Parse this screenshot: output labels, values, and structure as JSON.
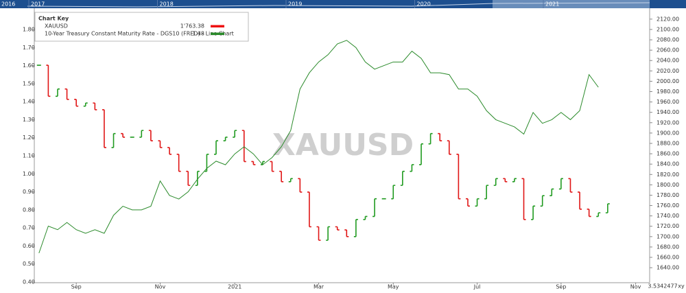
{
  "chart_data": {
    "type": "bar-line",
    "watermark": "XAUUSD",
    "legend_title": "Chart Key",
    "navigator": {
      "labels": [
        "2016",
        "2017",
        "2018",
        "2019",
        "2020",
        "2021"
      ]
    },
    "corner_labels": [
      "3.5342477",
      "xy"
    ],
    "categories": [
      null,
      null,
      null,
      null,
      "Sep",
      null,
      null,
      null,
      null,
      null,
      null,
      null,
      null,
      "Nov",
      null,
      null,
      null,
      null,
      null,
      null,
      null,
      "2021",
      null,
      null,
      null,
      null,
      null,
      null,
      null,
      null,
      "Mar",
      null,
      null,
      null,
      null,
      null,
      null,
      null,
      "May",
      null,
      null,
      null,
      null,
      null,
      null,
      null,
      null,
      "Jul",
      null,
      null,
      null,
      null,
      null,
      null,
      null,
      null,
      "Sep",
      null,
      null,
      null,
      null,
      null,
      null,
      null,
      "Nov",
      null
    ],
    "series": [
      {
        "name": "XAUUSD",
        "value_label": "1'763.38",
        "color": "#ee1111",
        "up_color": "#1f9a1f",
        "down_color": "#e01515",
        "values": [
          2031,
          1971,
          1985,
          1965,
          1952,
          1958,
          1945,
          1872,
          1899,
          1892,
          1892,
          1905,
          1885,
          1872,
          1859,
          1826,
          1799,
          1826,
          1859,
          1885,
          1892,
          1905,
          1845,
          1839,
          1845,
          1826,
          1806,
          1812,
          1786,
          1719,
          1693,
          1719,
          1713,
          1700,
          1733,
          1739,
          1773,
          1773,
          1799,
          1826,
          1839,
          1879,
          1899,
          1885,
          1859,
          1773,
          1759,
          1773,
          1799,
          1812,
          1806,
          1812,
          1733,
          1759,
          1779,
          1792,
          1812,
          1786,
          1753,
          1739,
          1746,
          1763.38,
          null,
          null,
          null,
          null
        ]
      },
      {
        "name": "10-Year Treasury Constant Maturity Rate - DGS10 (FRED) - Line Chart",
        "value_label": "1.48",
        "color": "#2a8a2a",
        "axis": "y2",
        "values": [
          0.56,
          0.71,
          0.69,
          0.73,
          0.69,
          0.67,
          0.69,
          0.67,
          0.77,
          0.82,
          0.8,
          0.8,
          0.82,
          0.96,
          0.88,
          0.86,
          0.9,
          0.97,
          1.03,
          1.07,
          1.05,
          1.11,
          1.15,
          1.11,
          1.05,
          1.09,
          1.15,
          1.24,
          1.47,
          1.56,
          1.62,
          1.66,
          1.72,
          1.74,
          1.7,
          1.62,
          1.58,
          1.6,
          1.62,
          1.62,
          1.68,
          1.64,
          1.56,
          1.56,
          1.55,
          1.47,
          1.47,
          1.43,
          1.35,
          1.3,
          1.28,
          1.26,
          1.22,
          1.34,
          1.28,
          1.3,
          1.34,
          1.3,
          1.35,
          1.55,
          1.48,
          null,
          null,
          null,
          null,
          null
        ]
      }
    ],
    "ylim": [
      1611,
      2141
    ],
    "yticks": [
      {
        "value": 1640,
        "label": "1640.00"
      },
      {
        "value": 1660,
        "label": "1660.00"
      },
      {
        "value": 1680,
        "label": "1680.00"
      },
      {
        "value": 1700,
        "label": "1700.00"
      },
      {
        "value": 1720,
        "label": "1720.00"
      },
      {
        "value": 1740,
        "label": "1740.00"
      },
      {
        "value": 1760,
        "label": "1760.00"
      },
      {
        "value": 1780,
        "label": "1780.00"
      },
      {
        "value": 1800,
        "label": "1800.00"
      },
      {
        "value": 1820,
        "label": "1820.00"
      },
      {
        "value": 1840,
        "label": "1840.00"
      },
      {
        "value": 1860,
        "label": "1860.00"
      },
      {
        "value": 1880,
        "label": "1880.00"
      },
      {
        "value": 1900,
        "label": "1900.00"
      },
      {
        "value": 1920,
        "label": "1920.00"
      },
      {
        "value": 1940,
        "label": "1940.00"
      },
      {
        "value": 1960,
        "label": "1960.00"
      },
      {
        "value": 1980,
        "label": "1980.00"
      },
      {
        "value": 2000,
        "label": "2000.00"
      },
      {
        "value": 2020,
        "label": "2020.00"
      },
      {
        "value": 2040,
        "label": "2040.00"
      },
      {
        "value": 2060,
        "label": "2060.00"
      },
      {
        "value": 2080,
        "label": "2080.00"
      },
      {
        "value": 2100,
        "label": "2100.00"
      },
      {
        "value": 2120,
        "label": "2120.00"
      }
    ],
    "y2lim": [
      0.396,
      1.918
    ],
    "y2ticks": [
      {
        "value": 0.4,
        "label": "0.40"
      },
      {
        "value": 0.5,
        "label": "0.50"
      },
      {
        "value": 0.6,
        "label": "0.60"
      },
      {
        "value": 0.7,
        "label": "0.70"
      },
      {
        "value": 0.8,
        "label": "0.80"
      },
      {
        "value": 0.9,
        "label": "0.90"
      },
      {
        "value": 1.0,
        "label": "1.00"
      },
      {
        "value": 1.1,
        "label": "1.10"
      },
      {
        "value": 1.2,
        "label": "1.20"
      },
      {
        "value": 1.3,
        "label": "1.30"
      },
      {
        "value": 1.4,
        "label": "1.40"
      },
      {
        "value": 1.5,
        "label": "1.50"
      },
      {
        "value": 1.6,
        "label": "1.60"
      },
      {
        "value": 1.7,
        "label": "1.70"
      },
      {
        "value": 1.8,
        "label": "1.80"
      }
    ],
    "grid": false
  }
}
